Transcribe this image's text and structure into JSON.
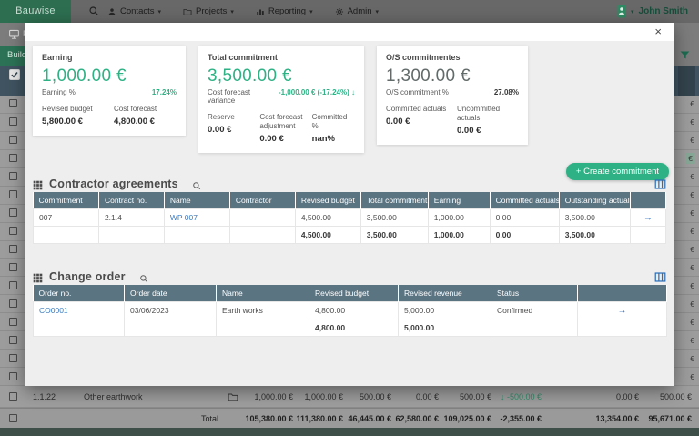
{
  "navbar": {
    "brand": "Bauwise",
    "items": [
      {
        "id": "contacts",
        "label": "Contacts",
        "icon": "person-icon"
      },
      {
        "id": "projects",
        "label": "Projects",
        "icon": "folder-icon"
      },
      {
        "id": "reporting",
        "label": "Reporting",
        "icon": "chart-icon"
      },
      {
        "id": "admin",
        "label": "Admin",
        "icon": "gear-icon"
      }
    ],
    "user": "John Smith"
  },
  "background": {
    "toolbar_item": "P",
    "project_tab": "Build",
    "empty_row_count": 16,
    "highlight_euro_row": 3,
    "currency_suffix": "€",
    "data_row": {
      "code": "1.1.22",
      "name": "Other earthwork",
      "values": [
        "1,000.00 €",
        "1,000.00 €",
        "500.00 €",
        "0.00 €",
        "500.00 €",
        "↓ -500.00 €",
        "0.00 €",
        "500.00 €"
      ],
      "green_value_index": 5
    },
    "total_row": {
      "label": "Total",
      "values": [
        "105,380.00 €",
        "111,380.00 €",
        "46,445.00 €",
        "62,580.00 €",
        "109,025.00 €",
        "-2,355.00 €",
        "13,354.00 €",
        "95,671.00 €"
      ]
    }
  },
  "modal": {
    "close_label": "×",
    "create_button": "+ Create commitment",
    "cards": [
      {
        "title": "Earning",
        "value": "1,000.00 €",
        "value_accent": true,
        "sub_label": "Earning %",
        "sub_value": "17.24%",
        "sub_accent": true,
        "stats": [
          {
            "label": "Revised budget",
            "value": "5,800.00 €"
          },
          {
            "label": "Cost forecast",
            "value": "4,800.00 €"
          }
        ]
      },
      {
        "title": "Total commitment",
        "value": "3,500.00 €",
        "value_accent": true,
        "sub_label": "Cost forecast variance",
        "sub_value": "-1,000.00 € (-17.24%) ↓",
        "sub_accent": true,
        "stats": [
          {
            "label": "Reserve",
            "value": "0.00 €"
          },
          {
            "label": "Cost forecast adjustment",
            "value": "0.00 €"
          },
          {
            "label": "Committed %",
            "value": "nan%"
          }
        ]
      },
      {
        "title": "O/S commitmentes",
        "value": "1,300.00 €",
        "value_accent": false,
        "sub_label": "O/S commitment %",
        "sub_value": "27.08%",
        "sub_accent": false,
        "stats": [
          {
            "label": "Committed actuals",
            "value": "0.00 €"
          },
          {
            "label": "Uncommitted actuals",
            "value": "0.00 €"
          }
        ]
      }
    ],
    "tables": [
      {
        "id": "contractor-agreements",
        "title": "Contractor agreements",
        "headers": [
          "Commitment",
          "Contract no.",
          "Name",
          "Contractor",
          "Revised budget",
          "Total commitment",
          "Earning",
          "Committed actuals",
          "Outstanding actuals",
          ""
        ],
        "link_col": 2,
        "arrow_col": 9,
        "rows": [
          [
            "007",
            "2.1.4",
            "WP 007",
            "",
            "4,500.00",
            "3,500.00",
            "1,000.00",
            "0.00",
            "3,500.00",
            "→"
          ]
        ],
        "footer": [
          "",
          "",
          "",
          "",
          "4,500.00",
          "3,500.00",
          "1,000.00",
          "0.00",
          "3,500.00",
          ""
        ]
      },
      {
        "id": "change-order",
        "title": "Change order",
        "headers": [
          "Order no.",
          "Order date",
          "Name",
          "Revised budget",
          "Revised revenue",
          "Status",
          ""
        ],
        "link_col": 0,
        "arrow_col": 6,
        "rows": [
          [
            "CO0001",
            "03/06/2023",
            "Earth works",
            "4,800.00",
            "5,000.00",
            "Confirmed",
            "→"
          ]
        ],
        "footer": [
          "",
          "",
          "",
          "4,800.00",
          "5,000.00",
          "",
          ""
        ]
      }
    ]
  },
  "colors": {
    "accent_green": "#2eb185",
    "link_blue": "#3a7bbf",
    "table_header_slate": "#5a7482"
  }
}
